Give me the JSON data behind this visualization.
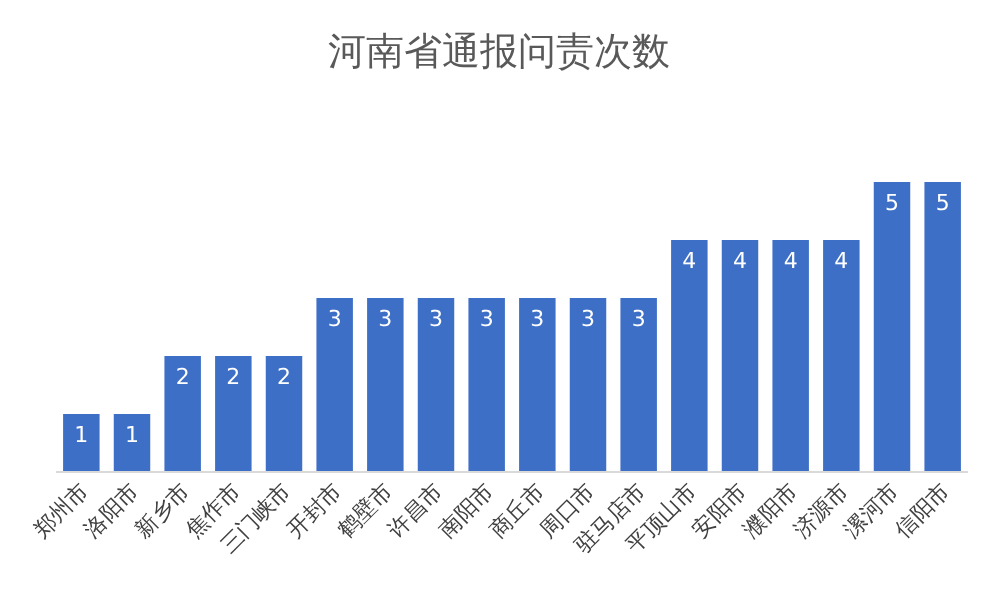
{
  "chart_data": {
    "type": "bar",
    "title": "河南省通报问责次数",
    "categories": [
      "郑州市",
      "洛阳市",
      "新乡市",
      "焦作市",
      "三门峡市",
      "开封市",
      "鹤壁市",
      "许昌市",
      "南阳市",
      "商丘市",
      "周口市",
      "驻马店市",
      "平顶山市",
      "安阳市",
      "濮阳市",
      "济源市",
      "漯河市",
      "信阳市"
    ],
    "values": [
      1,
      1,
      2,
      2,
      2,
      3,
      3,
      3,
      3,
      3,
      3,
      3,
      4,
      4,
      4,
      4,
      5,
      5
    ],
    "color": "#3d6fc6",
    "data_labels": true,
    "legend": false,
    "grid": false
  }
}
